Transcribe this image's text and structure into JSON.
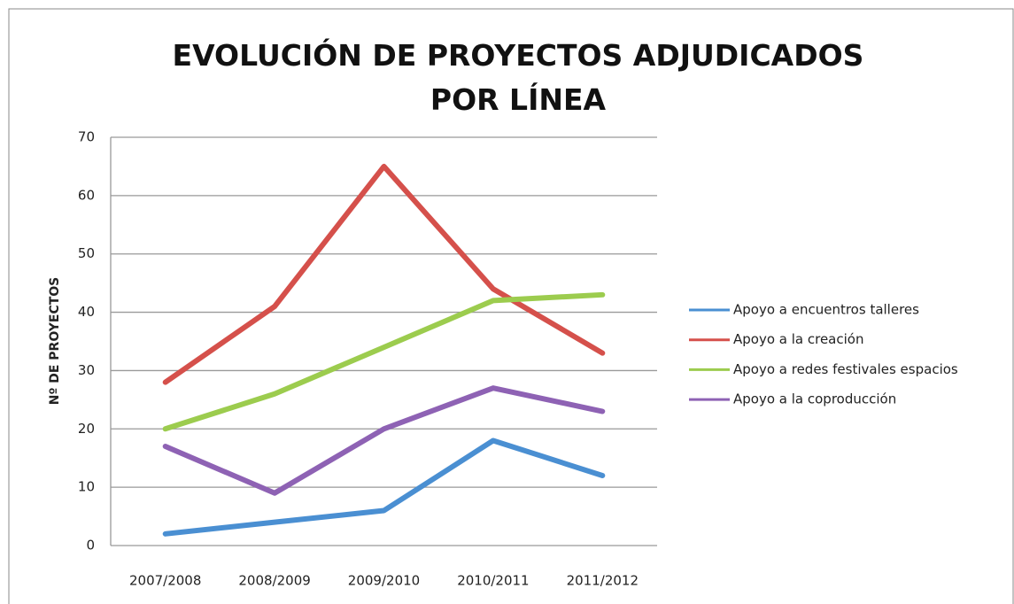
{
  "chart_data": {
    "type": "line",
    "title": "EVOLUCIÓN DE PROYECTOS ADJUDICADOS POR LÍNEA",
    "y_label": "Nº DE PROYECTOS",
    "categories": [
      "2007/2008",
      "2008/2009",
      "2009/2010",
      "2010/2011",
      "2011/2012"
    ],
    "series": [
      {
        "name": "Apoyo a encuentros talleres",
        "color": "#4a8fd2",
        "values": [
          2,
          4,
          6,
          18,
          12
        ]
      },
      {
        "name": "Apoyo a la creación",
        "color": "#d5504b",
        "values": [
          28,
          41,
          65,
          44,
          33
        ]
      },
      {
        "name": "Apoyo a redes festivales espacios",
        "color": "#9ccc4e",
        "values": [
          20,
          26,
          34,
          42,
          43
        ]
      },
      {
        "name": "Apoyo a la coproducción",
        "color": "#8e62b4",
        "values": [
          17,
          9,
          20,
          27,
          23
        ]
      }
    ],
    "ylim": [
      0,
      70
    ],
    "yticks": [
      0,
      10,
      20,
      30,
      40,
      50,
      60,
      70
    ],
    "grid": true,
    "legend": "right"
  }
}
